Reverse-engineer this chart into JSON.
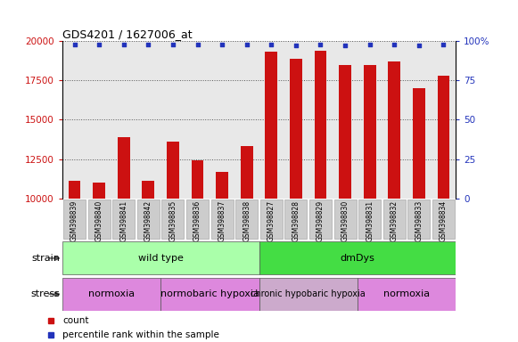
{
  "title": "GDS4201 / 1627006_at",
  "samples": [
    "GSM398839",
    "GSM398840",
    "GSM398841",
    "GSM398842",
    "GSM398835",
    "GSM398836",
    "GSM398837",
    "GSM398838",
    "GSM398827",
    "GSM398828",
    "GSM398829",
    "GSM398830",
    "GSM398831",
    "GSM398832",
    "GSM398833",
    "GSM398834"
  ],
  "counts": [
    11100,
    11000,
    13900,
    11100,
    13600,
    12400,
    11700,
    13300,
    19300,
    18900,
    19400,
    18500,
    18500,
    18700,
    17000,
    17800
  ],
  "percentile_ranks": [
    98,
    98,
    98,
    98,
    98,
    98,
    98,
    98,
    98,
    97,
    98,
    97,
    98,
    98,
    97,
    98
  ],
  "bar_color": "#cc1111",
  "dot_color": "#2233bb",
  "ylim_left": [
    10000,
    20000
  ],
  "yticks_left": [
    10000,
    12500,
    15000,
    17500,
    20000
  ],
  "ylim_right": [
    0,
    100
  ],
  "yticks_right": [
    0,
    25,
    50,
    75,
    100
  ],
  "ylabel_left_color": "#cc1111",
  "ylabel_right_color": "#2233bb",
  "grid_color": "#555555",
  "plot_bg": "#e8e8e8",
  "xtick_box_color": "#cccccc",
  "strain_labels": [
    {
      "text": "wild type",
      "start": 0,
      "end": 8,
      "color": "#aaffaa"
    },
    {
      "text": "dmDys",
      "start": 8,
      "end": 16,
      "color": "#44dd44"
    }
  ],
  "stress_labels": [
    {
      "text": "normoxia",
      "start": 0,
      "end": 4,
      "color": "#dd88dd"
    },
    {
      "text": "normobaric hypoxia",
      "start": 4,
      "end": 8,
      "color": "#dd88dd"
    },
    {
      "text": "chronic hypobaric hypoxia",
      "start": 8,
      "end": 12,
      "color": "#ccaacc"
    },
    {
      "text": "normoxia",
      "start": 12,
      "end": 16,
      "color": "#dd88dd"
    }
  ],
  "legend_items": [
    {
      "label": "count",
      "color": "#cc1111"
    },
    {
      "label": "percentile rank within the sample",
      "color": "#2233bb"
    }
  ]
}
